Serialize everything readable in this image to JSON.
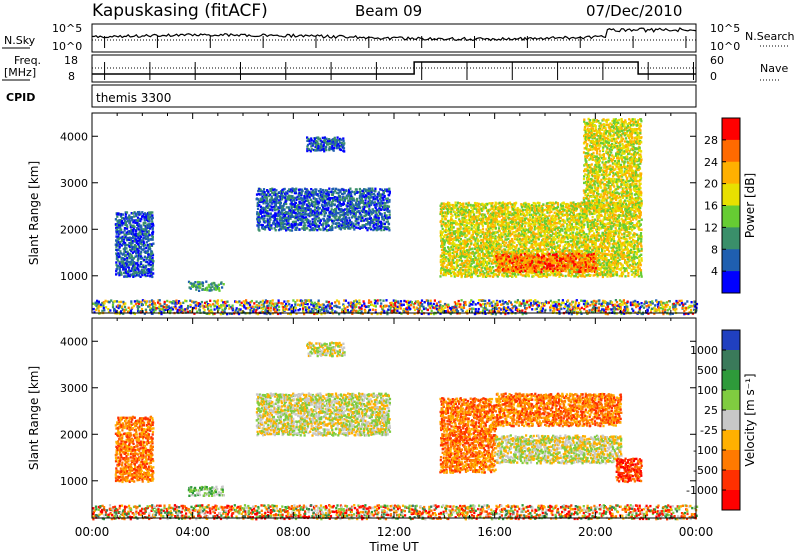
{
  "header": {
    "station": "Kapuskasing (fitACF)",
    "beam": "Beam 09",
    "date": "07/Dec/2010"
  },
  "strip_nsky": {
    "left_label": "N.Sky",
    "tick_top": "10^5",
    "tick_bottom": "10^0",
    "right_label": "N.Search",
    "right_tick_top": "10^5",
    "right_tick_bottom": "10^0"
  },
  "strip_freq": {
    "left_label_1": "Freq.",
    "left_label_2": "[MHz]",
    "tick_top": "18",
    "tick_bottom": "8",
    "right_label": "Nave",
    "right_tick_top": "60",
    "right_tick_bottom": "0"
  },
  "strip_cpid": {
    "label": "CPID",
    "value": "themis 3300"
  },
  "chart_data": [
    {
      "type": "heatmap",
      "name": "power",
      "ylabel": "Slant Range [km]",
      "ylim": [
        200,
        4500
      ],
      "xlim": [
        0,
        24
      ],
      "yticks": [
        "1000",
        "2000",
        "3000",
        "4000"
      ],
      "colorbar": {
        "label": "Power [dB]",
        "ticks": [
          "28",
          "24",
          "20",
          "16",
          "12",
          "8",
          "4"
        ],
        "colors": [
          "#ff0000",
          "#ff6a00",
          "#ffb000",
          "#e8e000",
          "#66cc33",
          "#3a8f6a",
          "#1f5fb0",
          "#0000ff"
        ]
      },
      "echo_regions": [
        {
          "t": [
            0.9,
            2.4
          ],
          "r": [
            1000,
            2400
          ],
          "level": 6
        },
        {
          "t": [
            3.8,
            5.2
          ],
          "r": [
            700,
            900
          ],
          "level": 5
        },
        {
          "t": [
            6.5,
            11.8
          ],
          "r": [
            2000,
            2900
          ],
          "level": 6
        },
        {
          "t": [
            8.5,
            10.0
          ],
          "r": [
            3700,
            4000
          ],
          "level": 6
        },
        {
          "t": [
            13.8,
            21.8
          ],
          "r": [
            1000,
            2600
          ],
          "level": 3
        },
        {
          "t": [
            16.0,
            20.0
          ],
          "r": [
            1100,
            1500
          ],
          "level": 1
        },
        {
          "t": [
            19.5,
            21.8
          ],
          "r": [
            2400,
            4400
          ],
          "level": 3
        },
        {
          "t": [
            0.0,
            24.0
          ],
          "r": [
            200,
            500
          ],
          "level": 4
        }
      ]
    },
    {
      "type": "heatmap",
      "name": "velocity",
      "ylabel": "Slant Range [km]",
      "ylim": [
        200,
        4500
      ],
      "xlim": [
        0,
        24
      ],
      "yticks": [
        "1000",
        "2000",
        "3000",
        "4000"
      ],
      "xticks": [
        "00:00",
        "04:00",
        "08:00",
        "12:00",
        "16:00",
        "20:00",
        "00:00"
      ],
      "xlabel": "Time UT",
      "colorbar": {
        "label": "Velocity [m s⁻¹]",
        "ticks": [
          "1000",
          "500",
          "100",
          "25",
          "-25",
          "-100",
          "-500",
          "-1000"
        ],
        "colors": [
          "#2040c0",
          "#3a7a5a",
          "#2e9a3a",
          "#80cc40",
          "#c8c8c8",
          "#ffb000",
          "#ff7a00",
          "#ff3000",
          "#ff0000"
        ]
      },
      "echo_regions": [
        {
          "t": [
            0.9,
            2.4
          ],
          "r": [
            1000,
            2400
          ],
          "level": 6
        },
        {
          "t": [
            3.8,
            5.2
          ],
          "r": [
            700,
            900
          ],
          "level": 3
        },
        {
          "t": [
            6.5,
            11.8
          ],
          "r": [
            2000,
            2900
          ],
          "level": 4
        },
        {
          "t": [
            8.5,
            10.0
          ],
          "r": [
            3700,
            4000
          ],
          "level": 4
        },
        {
          "t": [
            13.8,
            16.0
          ],
          "r": [
            1200,
            2800
          ],
          "level": 6
        },
        {
          "t": [
            16.0,
            21.0
          ],
          "r": [
            1400,
            2000
          ],
          "level": 4
        },
        {
          "t": [
            16.0,
            21.0
          ],
          "r": [
            2200,
            2900
          ],
          "level": 6
        },
        {
          "t": [
            20.8,
            21.8
          ],
          "r": [
            1000,
            1500
          ],
          "level": 7
        },
        {
          "t": [
            0.0,
            24.0
          ],
          "r": [
            200,
            500
          ],
          "level": 5
        }
      ]
    }
  ]
}
